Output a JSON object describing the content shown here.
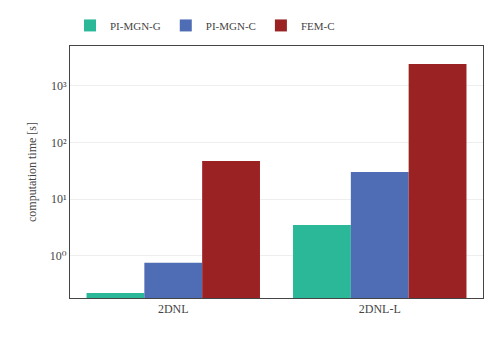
{
  "chart_data": {
    "type": "bar",
    "categories": [
      "2DNL",
      "2DNL-L"
    ],
    "series": [
      {
        "name": "PI-MGN-G",
        "color": "#2ab899",
        "values": [
          0.22,
          3.5
        ]
      },
      {
        "name": "PI-MGN-C",
        "color": "#4f6db5",
        "values": [
          0.75,
          30.0
        ]
      },
      {
        "name": "FEM-C",
        "color": "#9b2222",
        "values": [
          47.0,
          2400.0
        ]
      }
    ],
    "y_label": "computation time [s]",
    "log": "y",
    "ylim": [
      0.18,
      5000.0
    ],
    "yticks": [
      {
        "value": 1,
        "label": "10⁰"
      },
      {
        "value": 10,
        "label": "10¹"
      },
      {
        "value": 100,
        "label": "10²"
      },
      {
        "value": 1000,
        "label": "10³"
      }
    ],
    "grid": true,
    "legend": "top left"
  }
}
